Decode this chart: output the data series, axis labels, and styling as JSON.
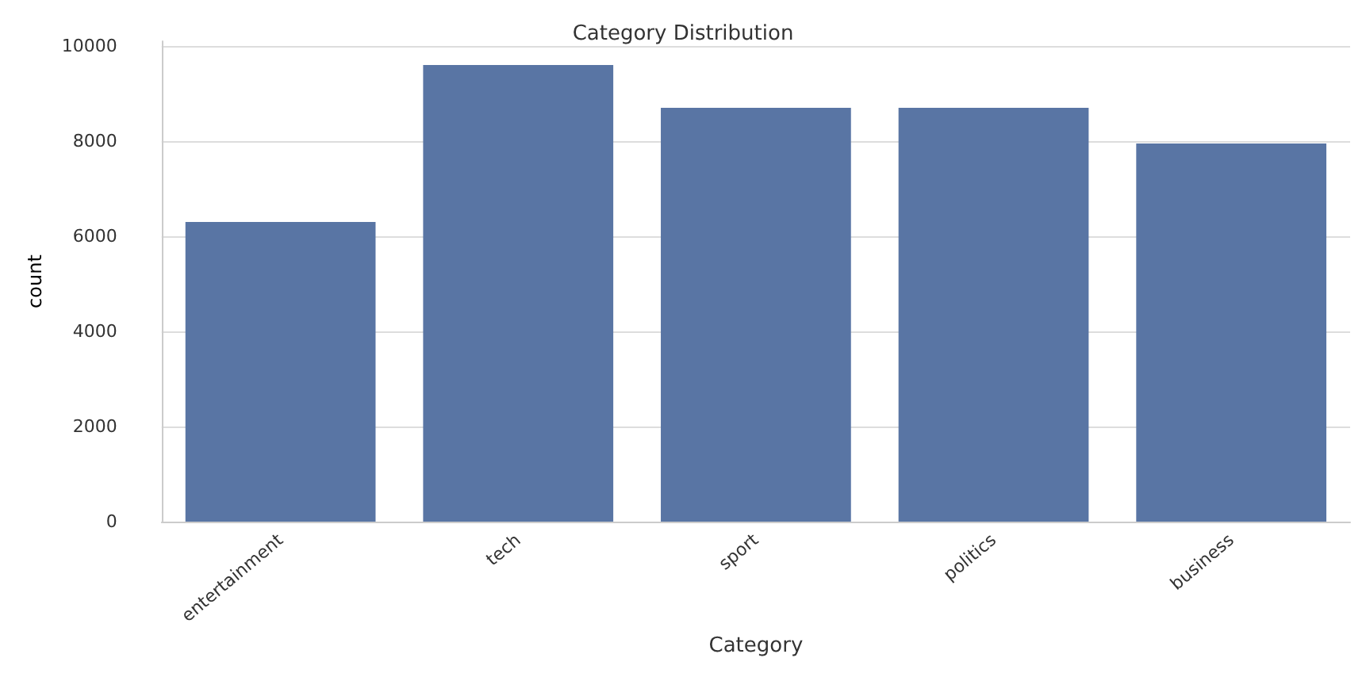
{
  "chart_data": {
    "type": "bar",
    "title": "Category Distribution",
    "xlabel": "Category",
    "ylabel": "count",
    "categories": [
      "entertainment",
      "tech",
      "sport",
      "politics",
      "business"
    ],
    "values": [
      6300,
      9600,
      8700,
      8700,
      7950
    ],
    "color": "#5975a4",
    "ylim": [
      0,
      10100
    ],
    "yticks": [
      0,
      2000,
      4000,
      6000,
      8000,
      10000
    ],
    "grid": "y"
  }
}
